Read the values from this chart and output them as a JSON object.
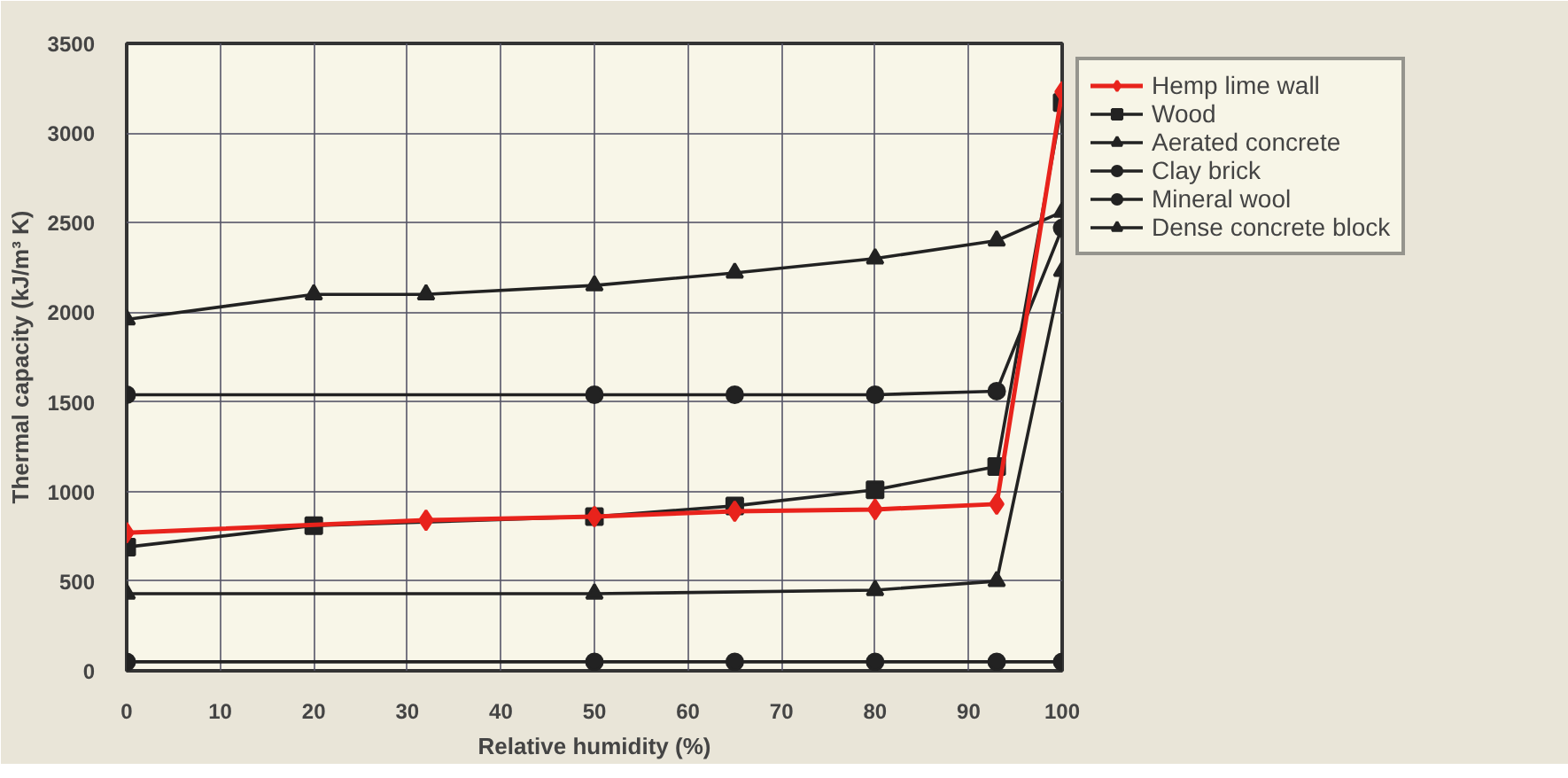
{
  "chart_data": {
    "type": "line",
    "xlabel": "Relative humidity (%)",
    "ylabel": "Thermal capacity (kJ/m³ K)",
    "xlim": [
      0,
      100
    ],
    "ylim": [
      0,
      3500
    ],
    "xticks": [
      0,
      10,
      20,
      30,
      40,
      50,
      60,
      70,
      80,
      90,
      100
    ],
    "yticks": [
      0,
      500,
      1000,
      1500,
      2000,
      2500,
      3000,
      3500
    ],
    "grid": true,
    "legend": "right",
    "series": [
      {
        "name": "Hemp lime wall",
        "color": "#e8231c",
        "marker": "diamond",
        "x": [
          0,
          32,
          50,
          65,
          80,
          93,
          100
        ],
        "values": [
          770,
          840,
          860,
          890,
          900,
          930,
          3230
        ]
      },
      {
        "name": "Wood",
        "color": "#222222",
        "marker": "square",
        "x": [
          0,
          20,
          50,
          65,
          80,
          93,
          100
        ],
        "values": [
          690,
          810,
          860,
          920,
          1010,
          1140,
          3170
        ]
      },
      {
        "name": "Aerated concrete",
        "color": "#222222",
        "marker": "triangle",
        "x": [
          0,
          50,
          80,
          93,
          100
        ],
        "values": [
          430,
          430,
          450,
          500,
          2230
        ]
      },
      {
        "name": "Clay brick",
        "color": "#222222",
        "marker": "circle",
        "x": [
          0,
          50,
          65,
          80,
          93,
          100
        ],
        "values": [
          1540,
          1540,
          1540,
          1540,
          1560,
          2470
        ]
      },
      {
        "name": "Mineral wool",
        "color": "#222222",
        "marker": "circle",
        "x": [
          0,
          50,
          65,
          80,
          93,
          100
        ],
        "values": [
          50,
          50,
          50,
          50,
          50,
          50
        ]
      },
      {
        "name": "Dense concrete block",
        "color": "#222222",
        "marker": "triangle",
        "x": [
          0,
          20,
          32,
          50,
          65,
          80,
          93,
          100
        ],
        "values": [
          1960,
          2100,
          2100,
          2150,
          2220,
          2300,
          2400,
          2560
        ]
      }
    ]
  }
}
